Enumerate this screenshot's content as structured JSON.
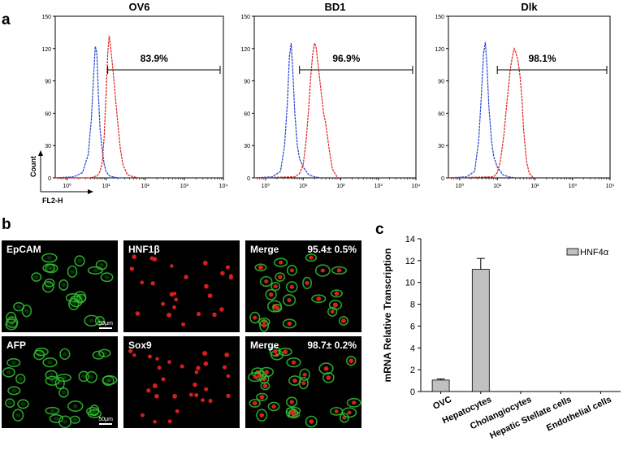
{
  "panel_a": {
    "letter": "a",
    "count_label": "Count",
    "axis_label": "FL2-H"
  },
  "panel_b": {
    "letter": "b",
    "scale_bar": "50μm",
    "row1": {
      "label1": "EpCAM",
      "label2": "HNF1β",
      "label3": "Merge",
      "percent": "95.4± 0.5%"
    },
    "row2": {
      "label1": "AFP",
      "label2": "Sox9",
      "label3": "Merge",
      "percent": "98.7± 0.2%"
    },
    "colors": {
      "green": "#2fbf2f",
      "red": "#e02020"
    }
  },
  "panel_c": {
    "letter": "c"
  },
  "chart_data": [
    {
      "type": "line",
      "title": "OV6",
      "xlabel": "FL2-H",
      "ylabel": "Count",
      "x_scale": "log",
      "xlim": [
        0.5,
        10000
      ],
      "ylim": [
        0,
        150
      ],
      "x_tick_labels": [
        "10⁰",
        "10¹",
        "10²",
        "10³",
        "10⁴"
      ],
      "y_ticks": [
        0,
        30,
        60,
        90,
        120,
        150
      ],
      "gate_percent": "83.9%",
      "gate_range": [
        11,
        10000
      ],
      "series": [
        {
          "color": "#1f3fd0",
          "x": [
            0.5,
            1.5,
            2.5,
            3.5,
            4.2,
            4.8,
            5.3,
            5.8,
            6.3,
            7,
            8,
            9,
            10,
            12,
            15,
            20,
            30
          ],
          "y": [
            0,
            1,
            5,
            22,
            55,
            95,
            122,
            116,
            80,
            45,
            25,
            12,
            6,
            2,
            1,
            0,
            0
          ]
        },
        {
          "color": "#e02020",
          "x": [
            0.5,
            4,
            6,
            7,
            8,
            9,
            10,
            11,
            12,
            13,
            15,
            17,
            20,
            23,
            27,
            35,
            50,
            70
          ],
          "y": [
            0,
            0,
            2,
            6,
            15,
            40,
            78,
            115,
            132,
            122,
            100,
            78,
            50,
            28,
            12,
            3,
            1,
            0
          ]
        }
      ]
    },
    {
      "type": "line",
      "title": "BD1",
      "x_scale": "log",
      "xlim": [
        0.5,
        10000
      ],
      "ylim": [
        0,
        150
      ],
      "x_tick_labels": [
        "10⁰",
        "10¹",
        "10²",
        "10³",
        "10⁴"
      ],
      "y_ticks": [
        0,
        30,
        60,
        90,
        120,
        150
      ],
      "gate_percent": "96.9%",
      "gate_range": [
        8,
        10000
      ],
      "series": [
        {
          "color": "#1f3fd0",
          "x": [
            0.5,
            1.5,
            2.5,
            3.2,
            3.8,
            4.3,
            4.8,
            5.3,
            6,
            7,
            8,
            10,
            14,
            20,
            30
          ],
          "y": [
            0,
            1,
            6,
            30,
            70,
            112,
            125,
            100,
            60,
            30,
            18,
            10,
            3,
            1,
            0
          ]
        },
        {
          "color": "#e02020",
          "x": [
            0.5,
            6,
            8,
            10,
            12,
            14,
            16,
            18,
            20,
            22,
            25,
            30,
            35,
            40,
            50,
            60,
            80
          ],
          "y": [
            0,
            1,
            4,
            12,
            35,
            65,
            95,
            115,
            125,
            122,
            105,
            80,
            60,
            50,
            25,
            8,
            1
          ]
        }
      ]
    },
    {
      "type": "line",
      "title": "Dlk",
      "x_scale": "log",
      "xlim": [
        0.5,
        10000
      ],
      "ylim": [
        0,
        150
      ],
      "x_tick_labels": [
        "10⁰",
        "10¹",
        "10²",
        "10³",
        "10⁴"
      ],
      "y_ticks": [
        0,
        30,
        60,
        90,
        120,
        150
      ],
      "gate_percent": "98.1%",
      "gate_range": [
        10,
        10000
      ],
      "series": [
        {
          "color": "#1f3fd0",
          "x": [
            0.5,
            1.5,
            2.5,
            3.2,
            3.8,
            4.3,
            4.8,
            5.3,
            6,
            7,
            8,
            10,
            14,
            20,
            30
          ],
          "y": [
            0,
            1,
            6,
            35,
            80,
            115,
            126,
            105,
            65,
            35,
            20,
            10,
            3,
            1,
            0
          ]
        },
        {
          "color": "#e02020",
          "x": [
            0.5,
            8,
            10,
            12,
            15,
            18,
            20,
            22,
            25,
            28,
            30,
            35,
            40,
            45,
            50,
            60,
            70,
            90
          ],
          "y": [
            0,
            1,
            5,
            15,
            40,
            70,
            85,
            100,
            112,
            120,
            118,
            110,
            95,
            75,
            45,
            15,
            5,
            0
          ]
        }
      ]
    },
    {
      "type": "bar",
      "categories": [
        "OVC",
        "Hepatocytes",
        "Cholangiocytes",
        "Hepatic Stellate cells",
        "Endothelial cells"
      ],
      "series": [
        {
          "name": "HNF4α",
          "values": [
            1.05,
            11.2,
            0,
            0,
            0
          ],
          "errors": [
            0.1,
            1.0,
            0,
            0,
            0
          ],
          "color": "#c0c0c0"
        }
      ],
      "ylabel": "mRNA Relative Transcription",
      "ylim": [
        0,
        14
      ],
      "y_ticks": [
        0,
        2,
        4,
        6,
        8,
        10,
        12,
        14
      ],
      "legend": "top-right"
    }
  ]
}
